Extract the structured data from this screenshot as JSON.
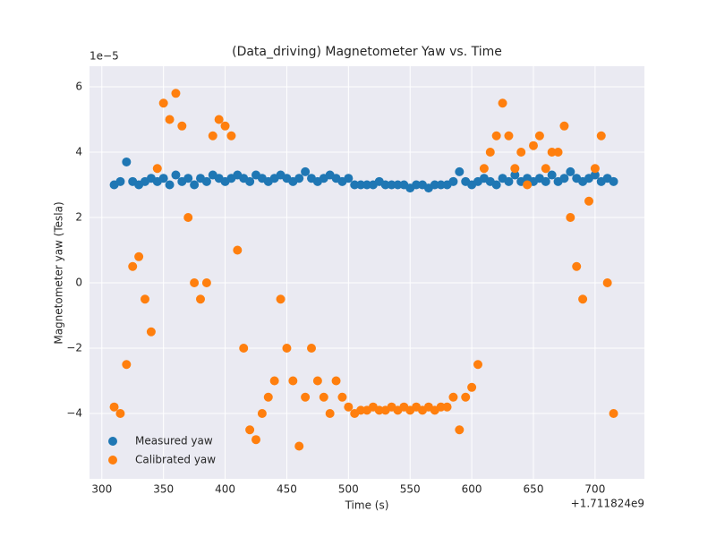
{
  "chart_data": {
    "type": "scatter",
    "title": "(Data_driving) Magnetometer Yaw vs. Time",
    "x_label": "Time (s)",
    "y_label": "Magnetometer yaw (Tesla)",
    "x_offset_label": "+1.711824e9",
    "y_offset_label": "1e−5",
    "xlim": [
      290,
      740
    ],
    "ylim": [
      -6,
      6.63
    ],
    "xticks": [
      300,
      350,
      400,
      450,
      500,
      550,
      600,
      650,
      700
    ],
    "yticks": [
      {
        "value": -4,
        "label": "−4"
      },
      {
        "value": -2,
        "label": "−2"
      },
      0,
      2,
      4,
      6
    ],
    "grid": true,
    "legend_position": "lower left",
    "x": [
      310,
      315,
      320,
      325,
      330,
      335,
      340,
      345,
      350,
      355,
      360,
      365,
      370,
      375,
      380,
      385,
      390,
      395,
      400,
      405,
      410,
      415,
      420,
      425,
      430,
      435,
      440,
      445,
      450,
      455,
      460,
      465,
      470,
      475,
      480,
      485,
      490,
      495,
      500,
      505,
      510,
      515,
      520,
      525,
      530,
      535,
      540,
      545,
      550,
      555,
      560,
      565,
      570,
      575,
      580,
      585,
      590,
      595,
      600,
      605,
      610,
      615,
      620,
      625,
      630,
      635,
      640,
      645,
      650,
      655,
      660,
      665,
      670,
      675,
      680,
      685,
      690,
      695,
      700,
      705,
      710,
      715
    ],
    "series": [
      {
        "name": "Measured yaw",
        "color": "#1f77b4",
        "values": [
          3.0,
          3.1,
          3.7,
          3.1,
          3.0,
          3.1,
          3.2,
          3.1,
          3.2,
          3.0,
          3.3,
          3.1,
          3.2,
          3.0,
          3.2,
          3.1,
          3.3,
          3.2,
          3.1,
          3.2,
          3.3,
          3.2,
          3.1,
          3.3,
          3.2,
          3.1,
          3.2,
          3.3,
          3.2,
          3.1,
          3.2,
          3.4,
          3.2,
          3.1,
          3.2,
          3.3,
          3.2,
          3.1,
          3.2,
          3.0,
          3.0,
          3.0,
          3.0,
          3.1,
          3.0,
          3.0,
          3.0,
          3.0,
          2.9,
          3.0,
          3.0,
          2.9,
          3.0,
          3.0,
          3.0,
          3.1,
          3.4,
          3.1,
          3.0,
          3.1,
          3.2,
          3.1,
          3.0,
          3.2,
          3.1,
          3.3,
          3.1,
          3.2,
          3.1,
          3.2,
          3.1,
          3.3,
          3.1,
          3.2,
          3.4,
          3.2,
          3.1,
          3.2,
          3.3,
          3.1,
          3.2,
          3.1
        ]
      },
      {
        "name": "Calibrated yaw",
        "color": "#ff7f0e",
        "values": [
          -3.8,
          -4.0,
          -2.5,
          0.5,
          0.8,
          -0.5,
          -1.5,
          3.5,
          5.5,
          5.0,
          5.8,
          4.8,
          2.0,
          0.0,
          -0.5,
          0.0,
          4.5,
          5.0,
          4.8,
          4.5,
          1.0,
          -2.0,
          -4.5,
          -4.8,
          -4.0,
          -3.5,
          -3.0,
          -0.5,
          -2.0,
          -3.0,
          -5.0,
          -3.5,
          -2.0,
          -3.0,
          -3.5,
          -4.0,
          -3.0,
          -3.5,
          -3.8,
          -4.0,
          -3.9,
          -3.9,
          -3.8,
          -3.9,
          -3.9,
          -3.8,
          -3.9,
          -3.8,
          -3.9,
          -3.8,
          -3.9,
          -3.8,
          -3.9,
          -3.8,
          -3.8,
          -3.5,
          -4.5,
          -3.5,
          -3.2,
          -2.5,
          3.5,
          4.0,
          4.5,
          5.5,
          4.5,
          3.5,
          4.0,
          3.0,
          4.2,
          4.5,
          3.5,
          4.0,
          4.0,
          4.8,
          2.0,
          0.5,
          -0.5,
          2.5,
          3.5,
          4.5,
          0.0,
          -4.0
        ]
      }
    ]
  }
}
